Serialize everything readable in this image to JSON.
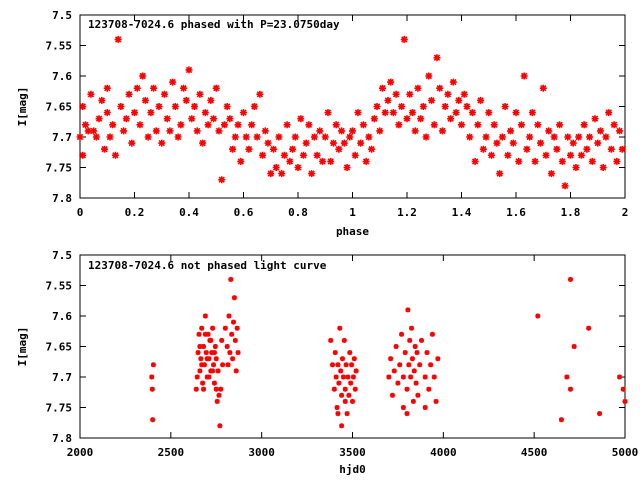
{
  "colors": {
    "points": "#ff0000",
    "axes": "#000000",
    "background": "#ffffff"
  },
  "chart_data": [
    {
      "type": "scatter",
      "title": "123708-7024.6 phased with P=23.0750day",
      "xlabel": "phase",
      "ylabel": "I[mag]",
      "xlim": [
        0,
        2
      ],
      "ylim": [
        7.8,
        7.5
      ],
      "y_inverted": true,
      "grid": false,
      "marker": "plus-cross",
      "xticks": [
        "0",
        "0.2",
        "0.4",
        "0.6",
        "0.8",
        "1",
        "1.2",
        "1.4",
        "1.6",
        "1.8",
        "2"
      ],
      "yticks": [
        "7.5",
        "7.55",
        "7.6",
        "7.65",
        "7.7",
        "7.75",
        "7.8"
      ],
      "points": [
        [
          0.0,
          7.7
        ],
        [
          0.01,
          7.73
        ],
        [
          0.01,
          7.65
        ],
        [
          0.02,
          7.68
        ],
        [
          0.03,
          7.69
        ],
        [
          0.04,
          7.63
        ],
        [
          0.05,
          7.69
        ],
        [
          0.06,
          7.7
        ],
        [
          0.07,
          7.67
        ],
        [
          0.08,
          7.64
        ],
        [
          0.09,
          7.72
        ],
        [
          0.1,
          7.66
        ],
        [
          0.1,
          7.62
        ],
        [
          0.11,
          7.7
        ],
        [
          0.12,
          7.68
        ],
        [
          0.13,
          7.73
        ],
        [
          0.14,
          7.54
        ],
        [
          0.15,
          7.65
        ],
        [
          0.16,
          7.69
        ],
        [
          0.17,
          7.67
        ],
        [
          0.18,
          7.63
        ],
        [
          0.19,
          7.71
        ],
        [
          0.2,
          7.66
        ],
        [
          0.21,
          7.62
        ],
        [
          0.22,
          7.68
        ],
        [
          0.23,
          7.6
        ],
        [
          0.24,
          7.64
        ],
        [
          0.25,
          7.7
        ],
        [
          0.26,
          7.66
        ],
        [
          0.27,
          7.62
        ],
        [
          0.28,
          7.69
        ],
        [
          0.29,
          7.65
        ],
        [
          0.3,
          7.71
        ],
        [
          0.31,
          7.63
        ],
        [
          0.32,
          7.67
        ],
        [
          0.33,
          7.69
        ],
        [
          0.34,
          7.61
        ],
        [
          0.35,
          7.65
        ],
        [
          0.36,
          7.7
        ],
        [
          0.37,
          7.68
        ],
        [
          0.38,
          7.62
        ],
        [
          0.39,
          7.64
        ],
        [
          0.4,
          7.59
        ],
        [
          0.41,
          7.67
        ],
        [
          0.42,
          7.65
        ],
        [
          0.43,
          7.69
        ],
        [
          0.44,
          7.63
        ],
        [
          0.45,
          7.71
        ],
        [
          0.46,
          7.66
        ],
        [
          0.47,
          7.68
        ],
        [
          0.48,
          7.64
        ],
        [
          0.49,
          7.67
        ],
        [
          0.5,
          7.62
        ],
        [
          0.51,
          7.69
        ],
        [
          0.52,
          7.77
        ],
        [
          0.53,
          7.68
        ],
        [
          0.54,
          7.65
        ],
        [
          0.55,
          7.67
        ],
        [
          0.56,
          7.72
        ],
        [
          0.57,
          7.7
        ],
        [
          0.58,
          7.68
        ],
        [
          0.59,
          7.74
        ],
        [
          0.6,
          7.66
        ],
        [
          0.61,
          7.7
        ],
        [
          0.62,
          7.72
        ],
        [
          0.63,
          7.68
        ],
        [
          0.64,
          7.65
        ],
        [
          0.65,
          7.7
        ],
        [
          0.66,
          7.63
        ],
        [
          0.67,
          7.73
        ],
        [
          0.68,
          7.69
        ],
        [
          0.69,
          7.71
        ],
        [
          0.7,
          7.76
        ],
        [
          0.71,
          7.72
        ],
        [
          0.72,
          7.75
        ],
        [
          0.73,
          7.7
        ],
        [
          0.74,
          7.76
        ],
        [
          0.75,
          7.73
        ],
        [
          0.76,
          7.68
        ],
        [
          0.77,
          7.74
        ],
        [
          0.78,
          7.72
        ],
        [
          0.79,
          7.7
        ],
        [
          0.8,
          7.75
        ],
        [
          0.81,
          7.67
        ],
        [
          0.82,
          7.73
        ],
        [
          0.83,
          7.71
        ],
        [
          0.84,
          7.68
        ],
        [
          0.85,
          7.76
        ],
        [
          0.86,
          7.7
        ],
        [
          0.87,
          7.73
        ],
        [
          0.88,
          7.69
        ],
        [
          0.89,
          7.74
        ],
        [
          0.9,
          7.7
        ],
        [
          0.91,
          7.66
        ],
        [
          0.92,
          7.74
        ],
        [
          0.93,
          7.71
        ],
        [
          0.94,
          7.68
        ],
        [
          0.95,
          7.72
        ],
        [
          0.96,
          7.69
        ],
        [
          0.97,
          7.71
        ],
        [
          0.98,
          7.75
        ],
        [
          0.99,
          7.7
        ],
        [
          1.0,
          7.69
        ],
        [
          1.01,
          7.73
        ],
        [
          1.02,
          7.66
        ],
        [
          1.03,
          7.71
        ],
        [
          1.04,
          7.68
        ],
        [
          1.05,
          7.74
        ],
        [
          1.06,
          7.7
        ],
        [
          1.07,
          7.72
        ],
        [
          1.08,
          7.67
        ],
        [
          1.09,
          7.65
        ],
        [
          1.1,
          7.69
        ],
        [
          1.11,
          7.62
        ],
        [
          1.12,
          7.66
        ],
        [
          1.13,
          7.64
        ],
        [
          1.14,
          7.61
        ],
        [
          1.15,
          7.66
        ],
        [
          1.16,
          7.63
        ],
        [
          1.17,
          7.68
        ],
        [
          1.18,
          7.65
        ],
        [
          1.19,
          7.54
        ],
        [
          1.2,
          7.67
        ],
        [
          1.21,
          7.63
        ],
        [
          1.22,
          7.66
        ],
        [
          1.23,
          7.69
        ],
        [
          1.24,
          7.62
        ],
        [
          1.25,
          7.67
        ],
        [
          1.26,
          7.65
        ],
        [
          1.27,
          7.7
        ],
        [
          1.28,
          7.6
        ],
        [
          1.29,
          7.64
        ],
        [
          1.3,
          7.68
        ],
        [
          1.31,
          7.57
        ],
        [
          1.32,
          7.62
        ],
        [
          1.33,
          7.69
        ],
        [
          1.34,
          7.65
        ],
        [
          1.35,
          7.63
        ],
        [
          1.36,
          7.67
        ],
        [
          1.37,
          7.61
        ],
        [
          1.38,
          7.66
        ],
        [
          1.39,
          7.64
        ],
        [
          1.4,
          7.68
        ],
        [
          1.41,
          7.63
        ],
        [
          1.42,
          7.65
        ],
        [
          1.43,
          7.7
        ],
        [
          1.44,
          7.66
        ],
        [
          1.45,
          7.74
        ],
        [
          1.46,
          7.68
        ],
        [
          1.47,
          7.64
        ],
        [
          1.48,
          7.72
        ],
        [
          1.49,
          7.7
        ],
        [
          1.5,
          7.66
        ],
        [
          1.51,
          7.73
        ],
        [
          1.52,
          7.68
        ],
        [
          1.53,
          7.71
        ],
        [
          1.54,
          7.76
        ],
        [
          1.55,
          7.7
        ],
        [
          1.56,
          7.65
        ],
        [
          1.57,
          7.73
        ],
        [
          1.58,
          7.69
        ],
        [
          1.59,
          7.71
        ],
        [
          1.6,
          7.66
        ],
        [
          1.61,
          7.74
        ],
        [
          1.62,
          7.68
        ],
        [
          1.63,
          7.6
        ],
        [
          1.64,
          7.72
        ],
        [
          1.65,
          7.7
        ],
        [
          1.66,
          7.66
        ],
        [
          1.67,
          7.74
        ],
        [
          1.68,
          7.68
        ],
        [
          1.69,
          7.71
        ],
        [
          1.7,
          7.62
        ],
        [
          1.71,
          7.73
        ],
        [
          1.72,
          7.69
        ],
        [
          1.73,
          7.76
        ],
        [
          1.74,
          7.7
        ],
        [
          1.75,
          7.72
        ],
        [
          1.76,
          7.68
        ],
        [
          1.77,
          7.74
        ],
        [
          1.78,
          7.78
        ],
        [
          1.79,
          7.7
        ],
        [
          1.8,
          7.73
        ],
        [
          1.81,
          7.71
        ],
        [
          1.82,
          7.75
        ],
        [
          1.83,
          7.7
        ],
        [
          1.84,
          7.73
        ],
        [
          1.85,
          7.68
        ],
        [
          1.86,
          7.72
        ],
        [
          1.87,
          7.7
        ],
        [
          1.88,
          7.74
        ],
        [
          1.89,
          7.67
        ],
        [
          1.9,
          7.71
        ],
        [
          1.91,
          7.69
        ],
        [
          1.92,
          7.75
        ],
        [
          1.93,
          7.7
        ],
        [
          1.94,
          7.66
        ],
        [
          1.95,
          7.72
        ],
        [
          1.96,
          7.68
        ],
        [
          1.97,
          7.74
        ],
        [
          1.98,
          7.69
        ],
        [
          1.99,
          7.72
        ]
      ]
    },
    {
      "type": "scatter",
      "title": "123708-7024.6 not phased light curve",
      "xlabel": "hjd0",
      "ylabel": "I[mag]",
      "xlim": [
        2000,
        5000
      ],
      "ylim": [
        7.8,
        7.5
      ],
      "y_inverted": true,
      "grid": false,
      "marker": "small-cross",
      "xticks": [
        "2000",
        "2500",
        "3000",
        "3500",
        "4000",
        "4500",
        "5000"
      ],
      "yticks": [
        "7.5",
        "7.55",
        "7.6",
        "7.65",
        "7.7",
        "7.75",
        "7.8"
      ],
      "points": [
        [
          2395,
          7.7
        ],
        [
          2398,
          7.72
        ],
        [
          2400,
          7.77
        ],
        [
          2404,
          7.68
        ],
        [
          2640,
          7.72
        ],
        [
          2645,
          7.7
        ],
        [
          2650,
          7.66
        ],
        [
          2655,
          7.63
        ],
        [
          2660,
          7.69
        ],
        [
          2665,
          7.67
        ],
        [
          2670,
          7.62
        ],
        [
          2675,
          7.71
        ],
        [
          2680,
          7.65
        ],
        [
          2685,
          7.68
        ],
        [
          2690,
          7.6
        ],
        [
          2695,
          7.66
        ],
        [
          2700,
          7.7
        ],
        [
          2705,
          7.63
        ],
        [
          2710,
          7.67
        ],
        [
          2715,
          7.64
        ],
        [
          2720,
          7.69
        ],
        [
          2725,
          7.66
        ],
        [
          2730,
          7.62
        ],
        [
          2735,
          7.68
        ],
        [
          2740,
          7.71
        ],
        [
          2745,
          7.65
        ],
        [
          2750,
          7.67
        ],
        [
          2755,
          7.74
        ],
        [
          2760,
          7.69
        ],
        [
          2765,
          7.73
        ],
        [
          2770,
          7.78
        ],
        [
          2775,
          7.72
        ],
        [
          2780,
          7.64
        ],
        [
          2785,
          7.68
        ],
        [
          2660,
          7.65
        ],
        [
          2670,
          7.68
        ],
        [
          2680,
          7.72
        ],
        [
          2690,
          7.63
        ],
        [
          2700,
          7.67
        ],
        [
          2710,
          7.7
        ],
        [
          2720,
          7.64
        ],
        [
          2730,
          7.69
        ],
        [
          2740,
          7.66
        ],
        [
          2750,
          7.72
        ],
        [
          2800,
          7.62
        ],
        [
          2810,
          7.65
        ],
        [
          2815,
          7.68
        ],
        [
          2820,
          7.6
        ],
        [
          2825,
          7.66
        ],
        [
          2830,
          7.54
        ],
        [
          2835,
          7.63
        ],
        [
          2840,
          7.67
        ],
        [
          2845,
          7.61
        ],
        [
          2850,
          7.57
        ],
        [
          2855,
          7.64
        ],
        [
          2860,
          7.69
        ],
        [
          2865,
          7.62
        ],
        [
          2870,
          7.66
        ],
        [
          3380,
          7.64
        ],
        [
          3390,
          7.68
        ],
        [
          3400,
          7.72
        ],
        [
          3405,
          7.66
        ],
        [
          3410,
          7.7
        ],
        [
          3415,
          7.75
        ],
        [
          3420,
          7.68
        ],
        [
          3425,
          7.71
        ],
        [
          3430,
          7.62
        ],
        [
          3435,
          7.69
        ],
        [
          3440,
          7.73
        ],
        [
          3445,
          7.67
        ],
        [
          3450,
          7.7
        ],
        [
          3455,
          7.64
        ],
        [
          3460,
          7.72
        ],
        [
          3465,
          7.68
        ],
        [
          3470,
          7.76
        ],
        [
          3475,
          7.7
        ],
        [
          3480,
          7.73
        ],
        [
          3485,
          7.66
        ],
        [
          3490,
          7.71
        ],
        [
          3495,
          7.68
        ],
        [
          3500,
          7.74
        ],
        [
          3505,
          7.7
        ],
        [
          3510,
          7.67
        ],
        [
          3515,
          7.72
        ],
        [
          3520,
          7.69
        ],
        [
          3420,
          7.76
        ],
        [
          3440,
          7.78
        ],
        [
          3460,
          7.74
        ],
        [
          3700,
          7.7
        ],
        [
          3710,
          7.67
        ],
        [
          3720,
          7.73
        ],
        [
          3730,
          7.69
        ],
        [
          3740,
          7.65
        ],
        [
          3750,
          7.71
        ],
        [
          3760,
          7.68
        ],
        [
          3770,
          7.63
        ],
        [
          3780,
          7.7
        ],
        [
          3790,
          7.66
        ],
        [
          3800,
          7.72
        ],
        [
          3805,
          7.59
        ],
        [
          3810,
          7.68
        ],
        [
          3815,
          7.64
        ],
        [
          3820,
          7.7
        ],
        [
          3825,
          7.62
        ],
        [
          3830,
          7.67
        ],
        [
          3835,
          7.74
        ],
        [
          3840,
          7.69
        ],
        [
          3845,
          7.65
        ],
        [
          3850,
          7.71
        ],
        [
          3855,
          7.66
        ],
        [
          3860,
          7.73
        ],
        [
          3870,
          7.68
        ],
        [
          3880,
          7.64
        ],
        [
          3900,
          7.7
        ],
        [
          3910,
          7.66
        ],
        [
          3920,
          7.72
        ],
        [
          3930,
          7.68
        ],
        [
          3940,
          7.63
        ],
        [
          3950,
          7.7
        ],
        [
          3960,
          7.74
        ],
        [
          3970,
          7.67
        ],
        [
          3780,
          7.75
        ],
        [
          3800,
          7.76
        ],
        [
          3900,
          7.75
        ],
        [
          4520,
          7.6
        ],
        [
          4680,
          7.7
        ],
        [
          4700,
          7.72
        ],
        [
          4700,
          7.54
        ],
        [
          4650,
          7.77
        ],
        [
          4720,
          7.65
        ],
        [
          4800,
          7.62
        ],
        [
          4860,
          7.76
        ],
        [
          4970,
          7.7
        ],
        [
          4990,
          7.72
        ],
        [
          5000,
          7.74
        ]
      ]
    }
  ]
}
